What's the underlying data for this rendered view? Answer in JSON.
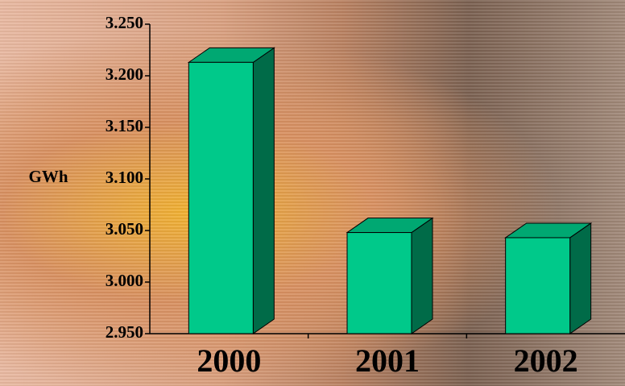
{
  "chart_data": {
    "type": "bar",
    "y_label": "GWh",
    "categories": [
      "2000",
      "2001",
      "2002"
    ],
    "values": [
      3213,
      3048,
      3043
    ],
    "color": "#00c98a",
    "ylim": [
      2950,
      3250
    ],
    "yticks": [
      {
        "value": 2950,
        "label": "2.950"
      },
      {
        "value": 3000,
        "label": "3.000"
      },
      {
        "value": 3050,
        "label": "3.050"
      },
      {
        "value": 3100,
        "label": "3.100"
      },
      {
        "value": 3150,
        "label": "3.150"
      },
      {
        "value": 3200,
        "label": "3.200"
      },
      {
        "value": 3250,
        "label": "3.250"
      }
    ]
  }
}
